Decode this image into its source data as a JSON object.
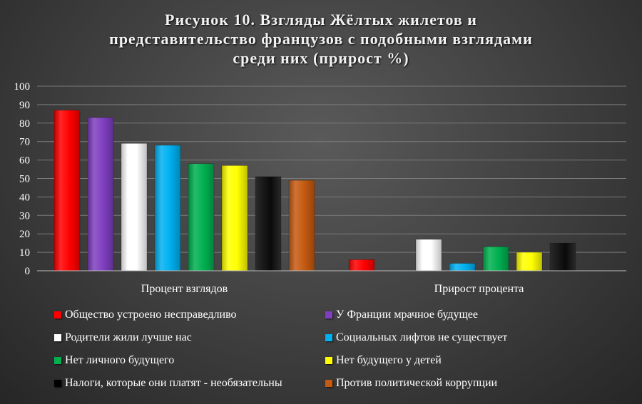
{
  "chart_data": {
    "type": "bar",
    "title": "Рисунок 10. Взгляды Жёлтых жилетов и представительство французов с подобными взглядами среди них (прирост %)",
    "title_lines": [
      "Рисунок 10. Взгляды Жёлтых жилетов и",
      "представительство французов с подобными взглядами",
      "среди них (прирост %)"
    ],
    "categories": [
      "Процент взглядов",
      "Прирост процента"
    ],
    "ylim": [
      0,
      100
    ],
    "yticks": [
      0,
      10,
      20,
      30,
      40,
      50,
      60,
      70,
      80,
      90,
      100
    ],
    "grid": true,
    "legend_position": "bottom",
    "series": [
      {
        "name": "Общество устроено несправедливо",
        "color": "#ff0000",
        "values": [
          87,
          6
        ]
      },
      {
        "name": "У Франции мрачное будущее",
        "color": "#7f3fbf",
        "values": [
          83,
          0
        ]
      },
      {
        "name": "Родители жили лучше нас",
        "color": "#ffffff",
        "values": [
          69,
          17
        ]
      },
      {
        "name": "Социальных лифтов не существует",
        "color": "#00b0f0",
        "values": [
          68,
          4
        ]
      },
      {
        "name": "Нет личного будущего",
        "color": "#00b050",
        "values": [
          58,
          13
        ]
      },
      {
        "name": "Нет будущего у детей",
        "color": "#ffff00",
        "values": [
          57,
          10
        ]
      },
      {
        "name": "Налоги, которые они платят - необязательны",
        "color": "#000000",
        "values": [
          51,
          15
        ]
      },
      {
        "name": "Против политической коррупции",
        "color": "#c55a11",
        "values": [
          49,
          0
        ]
      }
    ]
  }
}
